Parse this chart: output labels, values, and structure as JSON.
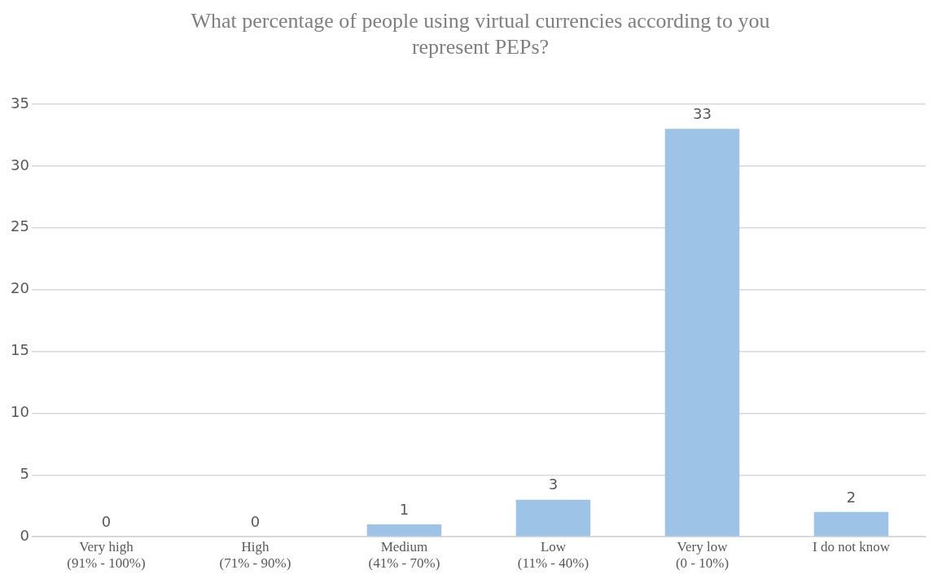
{
  "chart_data": {
    "type": "bar",
    "title": "What percentage of people using virtual currencies according to you represent PEPs?",
    "categories": [
      "Very high\n(91% - 100%)",
      "High\n(71% - 90%)",
      "Medium\n(41% - 70%)",
      "Low\n(11% - 40%)",
      "Very low\n(0 - 10%)",
      "I do not know"
    ],
    "values": [
      0,
      0,
      1,
      3,
      33,
      2
    ],
    "color": "#9dc3e6",
    "ylim": [
      0,
      35
    ],
    "yticks": [
      0,
      5,
      10,
      15,
      20,
      25,
      30,
      35
    ],
    "grid": "y",
    "data_labels": true,
    "legend": false
  }
}
